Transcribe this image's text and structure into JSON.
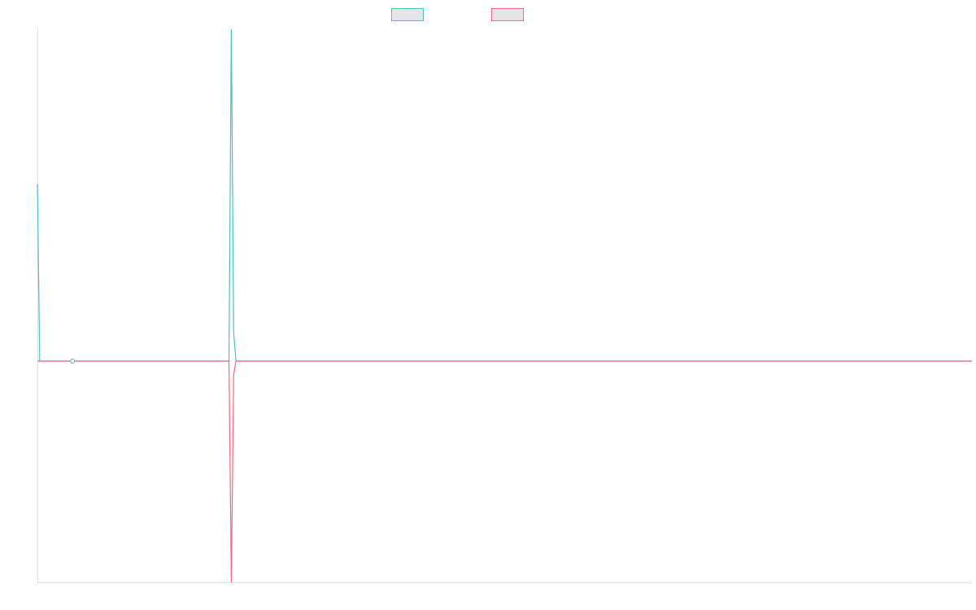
{
  "chart_data": {
    "type": "line",
    "x": [
      0,
      1,
      15,
      82,
      83,
      84,
      85,
      400
    ],
    "xlim": [
      0,
      400
    ],
    "ylim": [
      -1,
      1.5
    ],
    "series": [
      {
        "color": "#4bc0c0",
        "values": [
          0.8,
          0,
          0,
          0,
          1.5,
          0.13,
          0,
          0
        ]
      },
      {
        "color": "#ff6384",
        "values": [
          0,
          0,
          0,
          0,
          -1,
          -0.06,
          0,
          0
        ]
      }
    ],
    "legend": "top",
    "active_point": {
      "series": 0,
      "index": 2
    }
  }
}
